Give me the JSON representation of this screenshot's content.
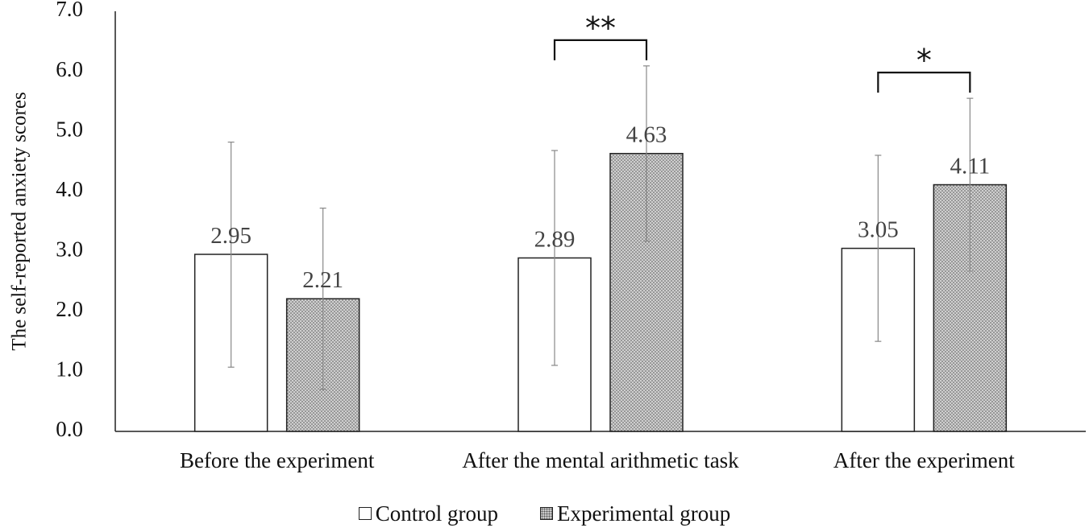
{
  "chart_data": {
    "type": "bar",
    "title": "",
    "xlabel": "",
    "ylabel": "The self-reported anxiety scores",
    "ylim": [
      0,
      7
    ],
    "yticks": [
      "0.0",
      "1.0",
      "2.0",
      "3.0",
      "4.0",
      "5.0",
      "6.0",
      "7.0"
    ],
    "categories": [
      "Before the experiment",
      "After the mental arithmetic task",
      "After the experiment"
    ],
    "series": [
      {
        "name": "Control group",
        "values": [
          2.95,
          2.89,
          3.05
        ],
        "value_labels": [
          "2.95",
          "2.89",
          "3.05"
        ],
        "error_low": [
          1.07,
          1.1,
          1.5
        ],
        "error_high": [
          4.82,
          4.68,
          4.6
        ],
        "fill": "#ffffff"
      },
      {
        "name": "Experimental group",
        "values": [
          2.21,
          4.63,
          4.11
        ],
        "value_labels": [
          "2.21",
          "4.63",
          "4.11"
        ],
        "error_low": [
          0.7,
          3.17,
          2.67
        ],
        "error_high": [
          3.72,
          6.09,
          5.55
        ],
        "fill": "#c8c8c8"
      }
    ],
    "significance": [
      {
        "category_index": 1,
        "label": "**"
      },
      {
        "category_index": 2,
        "label": "*"
      }
    ],
    "legend_position": "bottom",
    "grid": false,
    "colors": {
      "axis": "#222222",
      "bar_edge": "#222222",
      "error_bar": "#888888",
      "value_label": "#444444"
    }
  }
}
